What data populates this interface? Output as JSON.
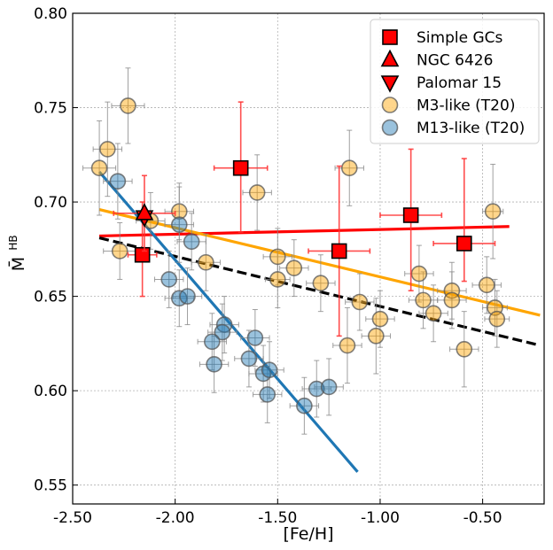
{
  "chart_data": {
    "type": "scatter",
    "xlabel": "[Fe/H]",
    "ylabel": "M̄ HB",
    "xlim": [
      -2.5,
      -0.2
    ],
    "ylim": [
      0.54,
      0.8
    ],
    "xticks": [
      "-2.50",
      "-2.00",
      "-1.50",
      "-1.00",
      "-0.50"
    ],
    "xtick_values": [
      -2.5,
      -2.0,
      -1.5,
      -1.0,
      -0.5
    ],
    "yticks": [
      "0.55",
      "0.60",
      "0.65",
      "0.70",
      "0.75",
      "0.80"
    ],
    "ytick_values": [
      0.55,
      0.6,
      0.65,
      0.7,
      0.75,
      0.8
    ],
    "grid": true,
    "legend_position": "top-right",
    "legend": [
      {
        "label": "Simple GCs",
        "marker": "square",
        "color": "#ff0000"
      },
      {
        "label": "NGC 6426",
        "marker": "triangle-up",
        "color": "#ff0000"
      },
      {
        "label": "Palomar 15",
        "marker": "triangle-down",
        "color": "#ff0000"
      },
      {
        "label": "M3-like (T20)",
        "marker": "circle",
        "color": "#ffa500"
      },
      {
        "label": "M13-like (T20)",
        "marker": "circle",
        "color": "#1f77b4"
      }
    ],
    "series": [
      {
        "name": "M3-like (T20)",
        "color": "#ffa500",
        "points": [
          {
            "x": -2.37,
            "y": 0.718,
            "xerr": 0.08,
            "yerr": 0.025
          },
          {
            "x": -2.33,
            "y": 0.728,
            "xerr": 0.07,
            "yerr": 0.025
          },
          {
            "x": -2.23,
            "y": 0.751,
            "xerr": 0.08,
            "yerr": 0.02
          },
          {
            "x": -2.27,
            "y": 0.674,
            "xerr": 0.08,
            "yerr": 0.015
          },
          {
            "x": -2.12,
            "y": 0.69,
            "xerr": 0.07,
            "yerr": 0.015
          },
          {
            "x": -1.98,
            "y": 0.695,
            "xerr": 0.07,
            "yerr": 0.015
          },
          {
            "x": -1.85,
            "y": 0.668,
            "xerr": 0.07,
            "yerr": 0.015
          },
          {
            "x": -1.6,
            "y": 0.705,
            "xerr": 0.07,
            "yerr": 0.02
          },
          {
            "x": -1.5,
            "y": 0.671,
            "xerr": 0.07,
            "yerr": 0.015
          },
          {
            "x": -1.5,
            "y": 0.659,
            "xerr": 0.06,
            "yerr": 0.015
          },
          {
            "x": -1.42,
            "y": 0.665,
            "xerr": 0.07,
            "yerr": 0.015
          },
          {
            "x": -1.29,
            "y": 0.657,
            "xerr": 0.07,
            "yerr": 0.015
          },
          {
            "x": -1.15,
            "y": 0.718,
            "xerr": 0.07,
            "yerr": 0.02
          },
          {
            "x": -1.16,
            "y": 0.624,
            "xerr": 0.07,
            "yerr": 0.02
          },
          {
            "x": -1.1,
            "y": 0.647,
            "xerr": 0.07,
            "yerr": 0.015
          },
          {
            "x": -1.02,
            "y": 0.629,
            "xerr": 0.07,
            "yerr": 0.02
          },
          {
            "x": -1.0,
            "y": 0.638,
            "xerr": 0.07,
            "yerr": 0.015
          },
          {
            "x": -0.81,
            "y": 0.662,
            "xerr": 0.07,
            "yerr": 0.015
          },
          {
            "x": -0.79,
            "y": 0.648,
            "xerr": 0.07,
            "yerr": 0.015
          },
          {
            "x": -0.74,
            "y": 0.641,
            "xerr": 0.07,
            "yerr": 0.015
          },
          {
            "x": -0.65,
            "y": 0.653,
            "xerr": 0.07,
            "yerr": 0.015
          },
          {
            "x": -0.65,
            "y": 0.648,
            "xerr": 0.07,
            "yerr": 0.015
          },
          {
            "x": -0.59,
            "y": 0.622,
            "xerr": 0.07,
            "yerr": 0.02
          },
          {
            "x": -0.48,
            "y": 0.656,
            "xerr": 0.07,
            "yerr": 0.015
          },
          {
            "x": -0.45,
            "y": 0.695,
            "xerr": 0.05,
            "yerr": 0.025
          },
          {
            "x": -0.44,
            "y": 0.644,
            "xerr": 0.06,
            "yerr": 0.015
          },
          {
            "x": -0.43,
            "y": 0.638,
            "xerr": 0.06,
            "yerr": 0.015
          }
        ]
      },
      {
        "name": "M13-like (T20)",
        "color": "#1f77b4",
        "points": [
          {
            "x": -2.28,
            "y": 0.711,
            "xerr": 0.07,
            "yerr": 0.02
          },
          {
            "x": -1.98,
            "y": 0.688,
            "xerr": 0.07,
            "yerr": 0.02
          },
          {
            "x": -2.03,
            "y": 0.659,
            "xerr": 0.07,
            "yerr": 0.015
          },
          {
            "x": -1.98,
            "y": 0.649,
            "xerr": 0.07,
            "yerr": 0.015
          },
          {
            "x": -1.94,
            "y": 0.65,
            "xerr": 0.07,
            "yerr": 0.015
          },
          {
            "x": -1.92,
            "y": 0.679,
            "xerr": 0.07,
            "yerr": 0.015
          },
          {
            "x": -1.76,
            "y": 0.635,
            "xerr": 0.07,
            "yerr": 0.015
          },
          {
            "x": -1.77,
            "y": 0.631,
            "xerr": 0.07,
            "yerr": 0.015
          },
          {
            "x": -1.82,
            "y": 0.626,
            "xerr": 0.07,
            "yerr": 0.015
          },
          {
            "x": -1.81,
            "y": 0.614,
            "xerr": 0.07,
            "yerr": 0.015
          },
          {
            "x": -1.64,
            "y": 0.617,
            "xerr": 0.07,
            "yerr": 0.015
          },
          {
            "x": -1.61,
            "y": 0.628,
            "xerr": 0.07,
            "yerr": 0.015
          },
          {
            "x": -1.57,
            "y": 0.609,
            "xerr": 0.07,
            "yerr": 0.015
          },
          {
            "x": -1.54,
            "y": 0.611,
            "xerr": 0.07,
            "yerr": 0.015
          },
          {
            "x": -1.55,
            "y": 0.598,
            "xerr": 0.07,
            "yerr": 0.015
          },
          {
            "x": -1.37,
            "y": 0.592,
            "xerr": 0.07,
            "yerr": 0.015
          },
          {
            "x": -1.31,
            "y": 0.601,
            "xerr": 0.07,
            "yerr": 0.015
          },
          {
            "x": -1.25,
            "y": 0.602,
            "xerr": 0.07,
            "yerr": 0.015
          }
        ]
      },
      {
        "name": "Simple GCs",
        "color": "#ff0000",
        "points": [
          {
            "x": -2.16,
            "y": 0.672,
            "xerr": 0.07,
            "yerr_lo": 0.022,
            "yerr_hi": 0.028
          },
          {
            "x": -1.68,
            "y": 0.718,
            "xerr": 0.13,
            "yerr_lo": 0.034,
            "yerr_hi": 0.035
          },
          {
            "x": -1.2,
            "y": 0.674,
            "xerr": 0.15,
            "yerr_lo": 0.045,
            "yerr_hi": 0.045
          },
          {
            "x": -0.85,
            "y": 0.693,
            "xerr": 0.15,
            "yerr_lo": 0.04,
            "yerr_hi": 0.035
          },
          {
            "x": -0.59,
            "y": 0.678,
            "xerr": 0.15,
            "yerr_lo": 0.02,
            "yerr_hi": 0.045
          }
        ]
      },
      {
        "name": "NGC 6426",
        "color": "#ff0000",
        "points": [
          {
            "x": -2.15,
            "y": 0.694,
            "xerr": 0.15,
            "yerr_lo": 0.02,
            "yerr_hi": 0.02
          }
        ]
      },
      {
        "name": "Palomar 15",
        "color": "#ff0000",
        "points": [
          {
            "x": -2.15,
            "y": 0.692,
            "xerr": 0.05,
            "yerr_lo": 0.02,
            "yerr_hi": 0.02
          }
        ]
      }
    ],
    "fit_lines": [
      {
        "color": "#ff0000",
        "style": "solid",
        "x": [
          -2.37,
          -0.37
        ],
        "y": [
          0.682,
          0.687
        ]
      },
      {
        "color": "#ffa500",
        "style": "solid",
        "x": [
          -2.37,
          -0.22
        ],
        "y": [
          0.696,
          0.64
        ]
      },
      {
        "color": "#000000",
        "style": "dashed",
        "x": [
          -2.37,
          -0.22
        ],
        "y": [
          0.681,
          0.624
        ]
      },
      {
        "color": "#1f77b4",
        "style": "solid",
        "x": [
          -2.37,
          -1.11
        ],
        "y": [
          0.716,
          0.557
        ]
      }
    ]
  }
}
